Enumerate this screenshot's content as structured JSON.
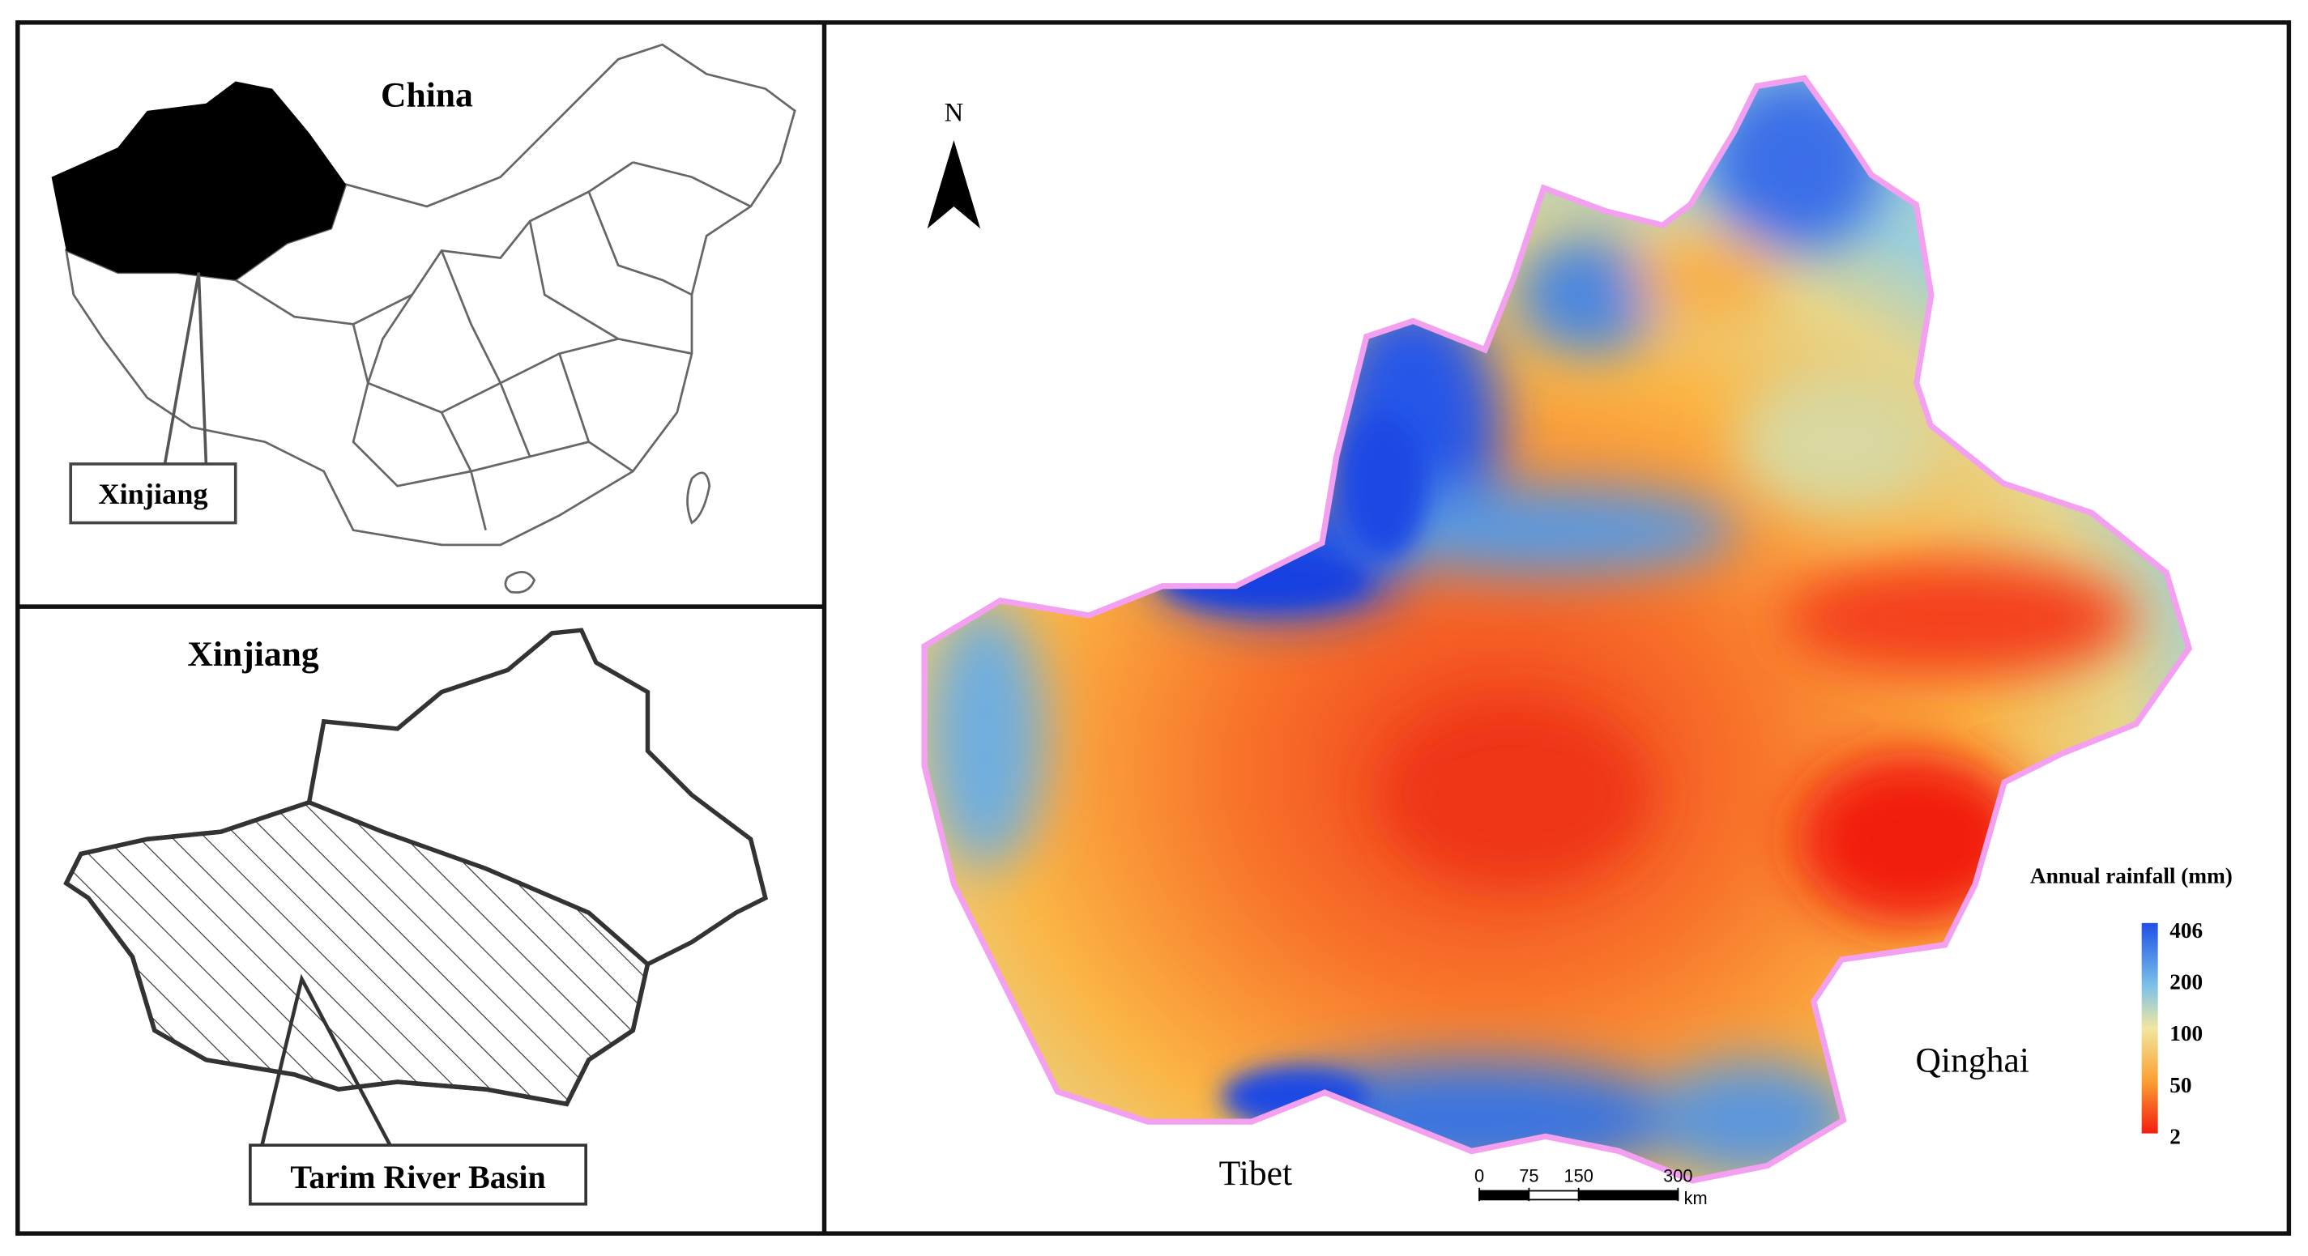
{
  "panels": {
    "china": {
      "title": "China",
      "label": "Xinjiang"
    },
    "xinjiang": {
      "title": "Xinjiang",
      "label": "Tarim River Basin"
    },
    "rainfall": {
      "north": "N",
      "legend": {
        "title": "Annual rainfall (mm)",
        "ticks": [
          406,
          200,
          100,
          50,
          2
        ]
      },
      "places": [
        "Tibet",
        "Qinghai"
      ],
      "scale_bar": {
        "ticks": [
          0,
          75,
          150,
          300
        ],
        "unit": "km"
      }
    }
  }
}
